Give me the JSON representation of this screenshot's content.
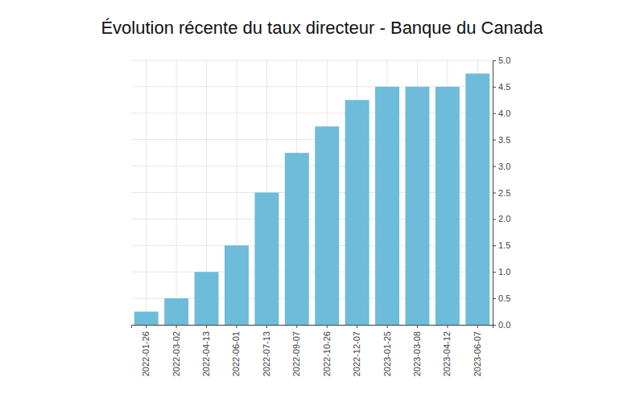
{
  "chart_data": {
    "type": "bar",
    "title": "Évolution récente du taux directeur - Banque du Canada",
    "categories": [
      "2022-01-26",
      "2022-03-02",
      "2022-04-13",
      "2022-06-01",
      "2022-07-13",
      "2022-09-07",
      "2022-10-26",
      "2022-12-07",
      "2023-01-25",
      "2023-03-08",
      "2023-04-12",
      "2023-06-07"
    ],
    "values": [
      0.25,
      0.5,
      1.0,
      1.5,
      2.5,
      3.25,
      3.75,
      4.25,
      4.5,
      4.5,
      4.5,
      4.75
    ],
    "color": "#6dbcd9",
    "ylim": [
      0,
      5
    ],
    "yticks": [
      {
        "value": 0,
        "label": "0.0"
      },
      0.5,
      {
        "value": 1,
        "label": "1.0"
      },
      1.5,
      {
        "value": 2,
        "label": "2.0"
      },
      2.5,
      {
        "value": 3,
        "label": "3.0"
      },
      3.5,
      {
        "value": 4,
        "label": "4.0"
      },
      4.5,
      {
        "value": 5,
        "label": "5.0"
      }
    ],
    "grid": true
  }
}
